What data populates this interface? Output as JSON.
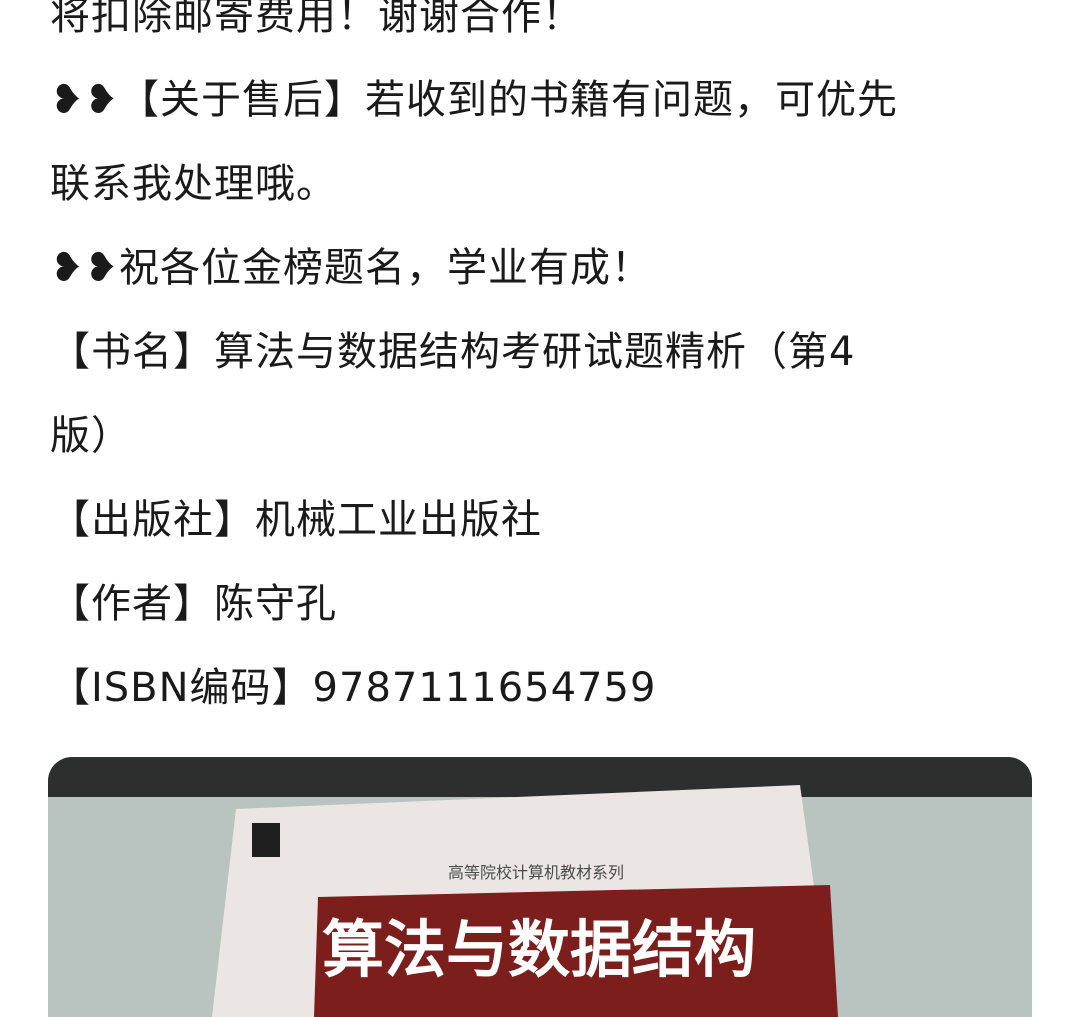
{
  "description_lines": [
    "将扣除邮寄费用！谢谢合作！",
    "❥❥【关于售后】若收到的书籍有问题，可优先",
    "联系我处理哦。",
    "❥❥祝各位金榜题名，学业有成！",
    "【书名】算法与数据结构考研试题精析（第4",
    "版）",
    "【出版社】机械工业出版社",
    "【作者】陈守孔",
    "【ISBN编码】9787111654759"
  ],
  "photo": {
    "series_text": "高等院校计算机教材系列",
    "cover_title": "算法与数据结构",
    "colors": {
      "table": "#b9c4c1",
      "cover": "#ebe6e4",
      "title_band": "#7c1e1c",
      "dark_edge": "#2d2f2f"
    }
  }
}
